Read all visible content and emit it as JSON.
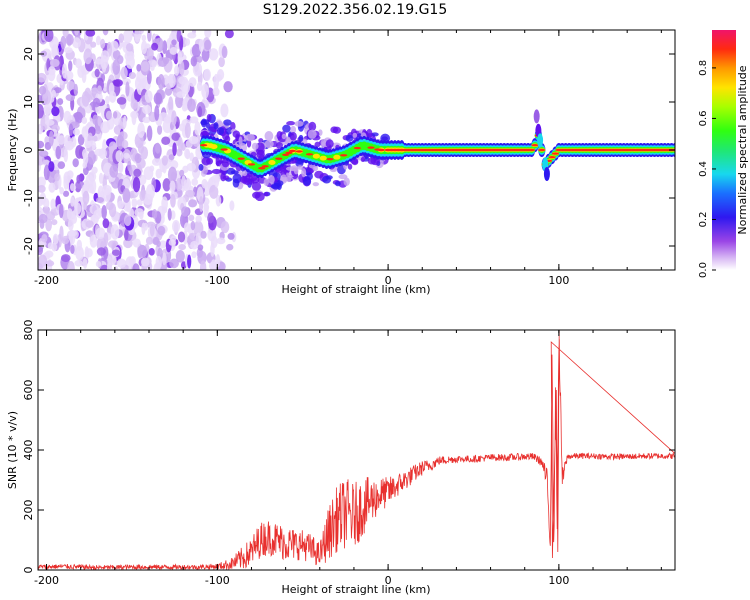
{
  "title": "S129.2022.356.02.19.G15",
  "chart_data": [
    {
      "type": "heatmap",
      "xlabel": "Height of straight line (km)",
      "ylabel": "Frequency (Hz)",
      "xlim": [
        -205,
        168
      ],
      "ylim": [
        -25,
        25
      ],
      "xticks": [
        -200,
        -100,
        0,
        100
      ],
      "yticks": [
        -20,
        -10,
        0,
        10,
        20
      ],
      "grid": false,
      "colorbar": {
        "label": "Normalized spectral amplitude",
        "range": [
          0,
          0.95
        ],
        "ticks": [
          0.0,
          0.2,
          0.4,
          0.6,
          0.8
        ]
      },
      "ridge": {
        "x": [
          -105,
          -95,
          -85,
          -75,
          -65,
          -55,
          -45,
          -35,
          -25,
          -15,
          -5,
          5,
          15,
          30,
          50,
          70,
          85,
          88,
          92,
          100,
          130,
          168
        ],
        "frequency": [
          1,
          0,
          -2,
          -4,
          -2,
          0,
          -1,
          -2,
          -1,
          1,
          0,
          0,
          0,
          0,
          0,
          0,
          0,
          3,
          -3,
          0,
          0,
          0
        ]
      }
    },
    {
      "type": "line",
      "xlabel": "Height of straight line (km)",
      "ylabel": "SNR (10 * v/v)",
      "xlim": [
        -205,
        168
      ],
      "ylim": [
        0,
        800
      ],
      "xticks": [
        -200,
        -100,
        0,
        100
      ],
      "yticks": [
        0,
        200,
        400,
        600,
        800
      ],
      "grid": false,
      "series": [
        {
          "color": "#e8302e",
          "x": [
            -205,
            -190,
            -170,
            -150,
            -130,
            -110,
            -100,
            -92,
            -85,
            -80,
            -75,
            -70,
            -65,
            -60,
            -55,
            -50,
            -45,
            -40,
            -35,
            -30,
            -25,
            -20,
            -15,
            -10,
            -5,
            0,
            5,
            10,
            15,
            20,
            25,
            30,
            40,
            50,
            60,
            70,
            80,
            85,
            90,
            93,
            95,
            96,
            97,
            98,
            99,
            100,
            102,
            105,
            110,
            120,
            130,
            140,
            150,
            160,
            168
          ],
          "y": [
            10,
            12,
            8,
            10,
            10,
            10,
            12,
            20,
            40,
            60,
            100,
            110,
            100,
            90,
            85,
            85,
            70,
            50,
            120,
            170,
            190,
            180,
            210,
            230,
            250,
            260,
            280,
            300,
            320,
            340,
            350,
            365,
            370,
            370,
            375,
            375,
            378,
            378,
            360,
            300,
            100,
            760,
            40,
            600,
            150,
            790,
            300,
            378,
            380,
            380,
            378,
            378,
            380,
            380,
            380
          ],
          "spread": [
            8,
            8,
            8,
            8,
            8,
            8,
            10,
            20,
            40,
            50,
            60,
            60,
            60,
            60,
            55,
            50,
            50,
            40,
            90,
            110,
            120,
            110,
            100,
            80,
            60,
            50,
            40,
            35,
            30,
            25,
            20,
            15,
            12,
            12,
            12,
            12,
            12,
            12,
            15,
            40,
            60,
            60,
            60,
            60,
            60,
            60,
            40,
            10,
            10,
            10,
            10,
            10,
            10,
            10,
            10
          ]
        }
      ]
    }
  ]
}
